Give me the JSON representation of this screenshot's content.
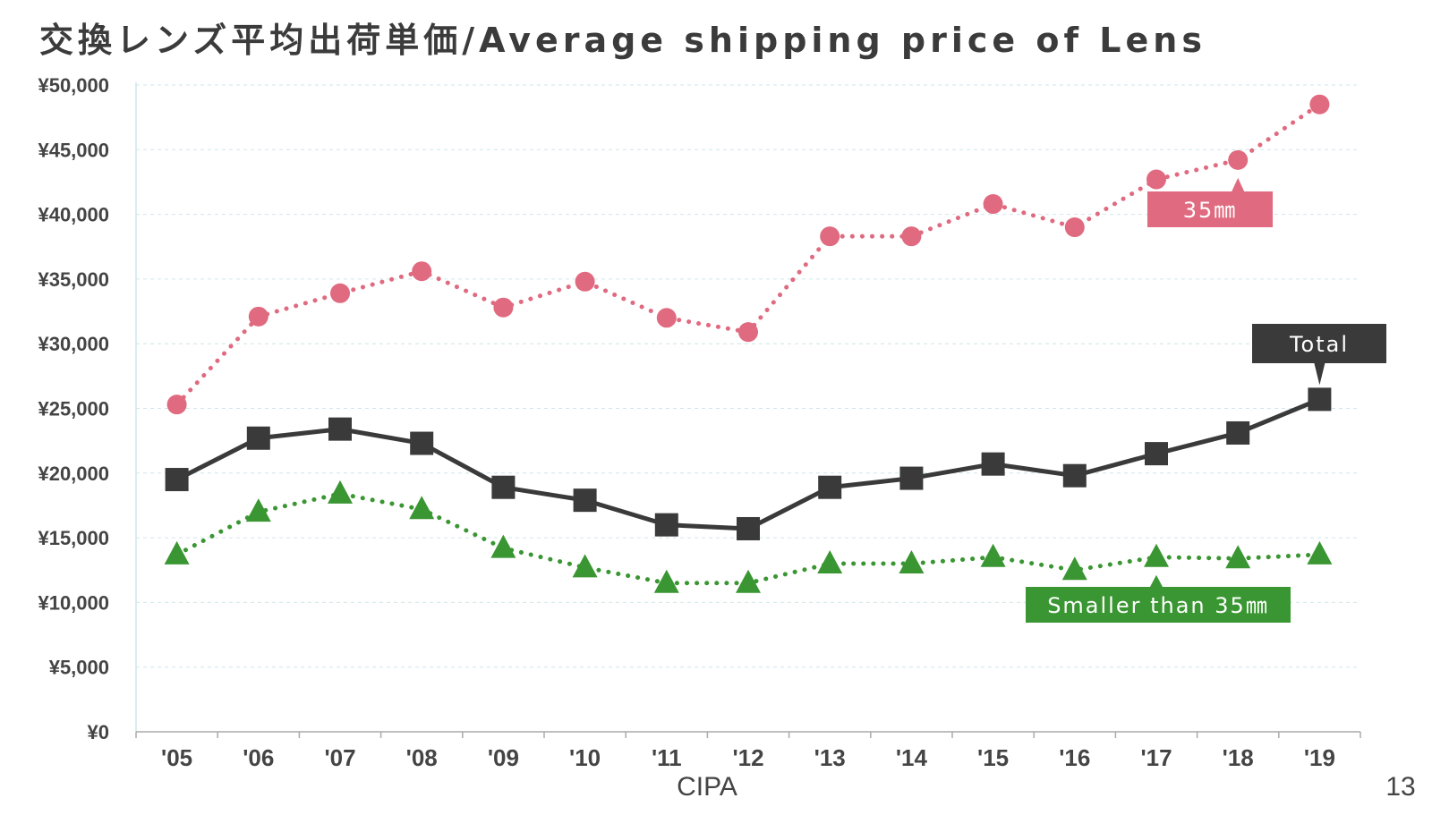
{
  "title": "交換レンズ平均出荷単価/Average shipping price of Lens",
  "source": "CIPA",
  "page_number": "13",
  "chart_data": {
    "type": "line",
    "title": "交換レンズ平均出荷単価/Average shipping price of Lens",
    "xlabel": "",
    "ylabel": "",
    "ylim": [
      0,
      50000
    ],
    "yticks": [
      0,
      5000,
      10000,
      15000,
      20000,
      25000,
      30000,
      35000,
      40000,
      45000,
      50000
    ],
    "ytick_labels": [
      "¥0",
      "¥5,000",
      "¥10,000",
      "¥15,000",
      "¥20,000",
      "¥25,000",
      "¥30,000",
      "¥35,000",
      "¥40,000",
      "¥45,000",
      "¥50,000"
    ],
    "categories": [
      "'05",
      "'06",
      "'07",
      "'08",
      "'09",
      "'10",
      "'11",
      "'12",
      "'13",
      "'14",
      "'15",
      "'16",
      "'17",
      "'18",
      "'19"
    ],
    "grid": true,
    "series": [
      {
        "name": "35㎜",
        "color": "#e06a7f",
        "line_style": "dotted",
        "marker": "circle",
        "values": [
          25300,
          32100,
          33900,
          35600,
          32800,
          34800,
          32000,
          30900,
          38300,
          38300,
          40800,
          39000,
          42700,
          44200,
          48500
        ]
      },
      {
        "name": "Total",
        "color": "#3a3a3a",
        "line_style": "solid",
        "marker": "square",
        "values": [
          19500,
          22700,
          23400,
          22300,
          18900,
          17900,
          16000,
          15700,
          18900,
          19600,
          20700,
          19800,
          21500,
          23100,
          25700
        ]
      },
      {
        "name": "Smaller than 35㎜",
        "color": "#3a9632",
        "line_style": "dotted",
        "marker": "triangle",
        "values": [
          13700,
          17000,
          18400,
          17200,
          14200,
          12700,
          11500,
          11500,
          13000,
          13000,
          13500,
          12500,
          13500,
          13400,
          13700
        ]
      }
    ]
  }
}
